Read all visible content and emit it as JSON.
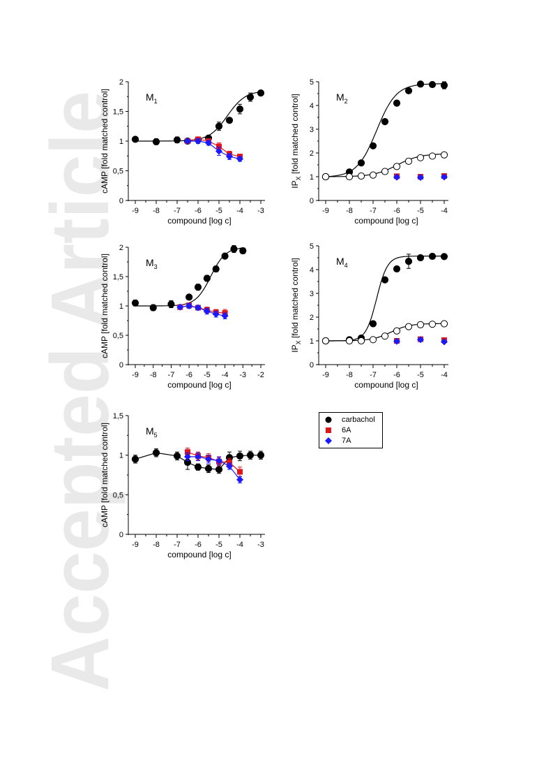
{
  "watermark": "Accepted Article",
  "legend": {
    "items": [
      {
        "label": "carbachol",
        "color": "#000000",
        "marker": "circle"
      },
      {
        "label": "6A",
        "color": "#e0161d",
        "marker": "square"
      },
      {
        "label": "7A",
        "color": "#1a1aff",
        "marker": "diamond"
      }
    ]
  },
  "colors": {
    "carbachol": "#000000",
    "6A": "#e0161d",
    "7A": "#1a1aff",
    "open": "#ffffff"
  },
  "chart_data": [
    {
      "type": "scatter",
      "panel_label": "M",
      "panel_sub": "1",
      "xlabel": "compound [log c]",
      "ylabel_main": "cAMP [fold matched control]",
      "ylabel_sub": "",
      "xlim": [
        -9,
        -3
      ],
      "ylim": [
        0,
        2
      ],
      "xticks": [
        -9,
        -8,
        -7,
        -6,
        -5,
        -4,
        -3
      ],
      "xtick_labels": [
        "-9",
        "-8",
        "-7",
        "-6",
        "-5",
        "-4",
        "-3"
      ],
      "yticks": [
        0,
        0.5,
        1,
        1.5,
        2
      ],
      "ytick_labels": [
        "0",
        "0,5",
        "1",
        "1,5",
        "2"
      ],
      "series": [
        {
          "name": "carbachol",
          "marker": "circle",
          "fill": "#000000",
          "line": true,
          "x": [
            -9,
            -8,
            -7,
            -6.5,
            -6,
            -5.5,
            -5,
            -4.5,
            -4,
            -3.5,
            -3
          ],
          "y": [
            1.03,
            0.99,
            1.02,
            1.0,
            1.02,
            1.05,
            1.25,
            1.35,
            1.54,
            1.74,
            1.81
          ],
          "err": [
            0.04,
            0.05,
            0.05,
            0.03,
            0.03,
            0.04,
            0.07,
            0.04,
            0.08,
            0.07,
            0.04
          ]
        },
        {
          "name": "6A",
          "marker": "square",
          "fill": "#e0161d",
          "line": true,
          "x": [
            -6.5,
            -6,
            -5.5,
            -5,
            -4.5,
            -4
          ],
          "y": [
            1.0,
            1.03,
            1.0,
            0.91,
            0.78,
            0.74
          ],
          "err": [
            0.03,
            0.04,
            0.04,
            0.06,
            0.05,
            0.03
          ]
        },
        {
          "name": "7A",
          "marker": "diamond",
          "fill": "#1a1aff",
          "line": true,
          "x": [
            -6.5,
            -6,
            -5.5,
            -5,
            -4.5,
            -4
          ],
          "y": [
            1.0,
            1.0,
            0.97,
            0.83,
            0.74,
            0.7
          ],
          "err": [
            0.03,
            0.04,
            0.04,
            0.07,
            0.05,
            0.04
          ]
        }
      ]
    },
    {
      "type": "scatter",
      "panel_label": "M",
      "panel_sub": "2",
      "xlabel": "compound [log c]",
      "ylabel_main": "IP",
      "ylabel_sub": "X",
      "ylabel_rest": " [fold matched control]",
      "xlim": [
        -9,
        -4
      ],
      "ylim": [
        0,
        5
      ],
      "xticks": [
        -9,
        -8,
        -7,
        -6,
        -5,
        -4
      ],
      "xtick_labels": [
        "-9",
        "-8",
        "-7",
        "-6",
        "-5",
        "-4"
      ],
      "yticks": [
        0,
        1,
        2,
        3,
        4,
        5
      ],
      "ytick_labels": [
        "0",
        "1",
        "2",
        "3",
        "4",
        "5"
      ],
      "series": [
        {
          "name": "carbachol",
          "marker": "circle",
          "fill": "#000000",
          "line": true,
          "x": [
            -9,
            -8,
            -7.5,
            -7,
            -6.5,
            -6,
            -5.5,
            -5,
            -4.5,
            -4
          ],
          "y": [
            1.0,
            1.2,
            1.58,
            2.3,
            3.32,
            4.1,
            4.62,
            4.9,
            4.88,
            4.85
          ],
          "err": [
            0.03,
            0.04,
            0.05,
            0.06,
            0.06,
            0.07,
            0.05,
            0.1,
            0.1,
            0.15
          ]
        },
        {
          "name": "",
          "marker": "circle",
          "fill": "#ffffff",
          "line": true,
          "x": [
            -9,
            -8,
            -7.5,
            -7,
            -6.5,
            -6,
            -5.5,
            -5,
            -4.5,
            -4
          ],
          "y": [
            1.0,
            1.0,
            1.03,
            1.07,
            1.22,
            1.43,
            1.65,
            1.8,
            1.87,
            1.92
          ],
          "err": [
            0.02,
            0.02,
            0.02,
            0.03,
            0.03,
            0.04,
            0.04,
            0.05,
            0.05,
            0.05
          ]
        },
        {
          "name": "6A",
          "marker": "square",
          "fill": "#e0161d",
          "line": false,
          "x": [
            -6,
            -5,
            -4
          ],
          "y": [
            1.02,
            1.0,
            1.03
          ],
          "err": [
            0.04,
            0.04,
            0.05
          ]
        },
        {
          "name": "7A",
          "marker": "diamond",
          "fill": "#1a1aff",
          "line": false,
          "x": [
            -6,
            -5,
            -4
          ],
          "y": [
            0.98,
            0.97,
            0.99
          ],
          "err": [
            0.04,
            0.04,
            0.05
          ]
        }
      ]
    },
    {
      "type": "scatter",
      "panel_label": "M",
      "panel_sub": "3",
      "xlabel": "compound [log c]",
      "ylabel_main": "cAMP [fold matched control]",
      "ylabel_sub": "",
      "xlim": [
        -9,
        -2
      ],
      "ylim": [
        0,
        2
      ],
      "xticks": [
        -9,
        -8,
        -7,
        -6,
        -5,
        -4,
        -3,
        -2
      ],
      "xtick_labels": [
        "-9",
        "-8",
        "-7",
        "-6",
        "-5",
        "-4",
        "-3",
        "-2"
      ],
      "yticks": [
        0,
        0.5,
        1,
        1.5,
        2
      ],
      "ytick_labels": [
        "0",
        "0,5",
        "1",
        "1,5",
        "2"
      ],
      "series": [
        {
          "name": "carbachol",
          "marker": "circle",
          "fill": "#000000",
          "line": true,
          "x": [
            -9,
            -8,
            -7,
            -6,
            -5.5,
            -5,
            -4.5,
            -4,
            -3.5,
            -3
          ],
          "y": [
            1.05,
            0.97,
            1.03,
            1.15,
            1.32,
            1.47,
            1.63,
            1.85,
            1.97,
            1.94
          ],
          "err": [
            0.05,
            0.05,
            0.06,
            0.04,
            0.05,
            0.05,
            0.05,
            0.04,
            0.06,
            0.05
          ]
        },
        {
          "name": "6A",
          "marker": "square",
          "fill": "#e0161d",
          "line": true,
          "x": [
            -6.5,
            -6,
            -5.5,
            -5,
            -4.5,
            -4
          ],
          "y": [
            0.98,
            1.01,
            0.97,
            0.93,
            0.89,
            0.88
          ],
          "err": [
            0.03,
            0.04,
            0.04,
            0.05,
            0.05,
            0.06
          ]
        },
        {
          "name": "7A",
          "marker": "diamond",
          "fill": "#1a1aff",
          "line": true,
          "x": [
            -6.5,
            -6,
            -5.5,
            -5,
            -4.5,
            -4
          ],
          "y": [
            0.98,
            1.0,
            0.97,
            0.91,
            0.86,
            0.83
          ],
          "err": [
            0.03,
            0.04,
            0.04,
            0.05,
            0.05,
            0.05
          ]
        }
      ]
    },
    {
      "type": "scatter",
      "panel_label": "M",
      "panel_sub": "4",
      "xlabel": "compound [log c]",
      "ylabel_main": "IP",
      "ylabel_sub": "X",
      "ylabel_rest": " [fold matched control]",
      "xlim": [
        -9,
        -4
      ],
      "ylim": [
        0,
        5
      ],
      "xticks": [
        -9,
        -8,
        -7,
        -6,
        -5,
        -4
      ],
      "xtick_labels": [
        "-9",
        "-8",
        "-7",
        "-6",
        "-5",
        "-4"
      ],
      "yticks": [
        0,
        1,
        2,
        3,
        4,
        5
      ],
      "ytick_labels": [
        "0",
        "1",
        "2",
        "3",
        "4",
        "5"
      ],
      "series": [
        {
          "name": "carbachol",
          "marker": "circle",
          "fill": "#000000",
          "line": true,
          "x": [
            -9,
            -8,
            -7.5,
            -7,
            -6.5,
            -6,
            -5.5,
            -5,
            -4.5,
            -4
          ],
          "y": [
            1.0,
            1.05,
            1.12,
            1.72,
            3.57,
            4.03,
            4.35,
            4.5,
            4.56,
            4.55
          ],
          "err": [
            0.03,
            0.04,
            0.05,
            0.06,
            0.06,
            0.08,
            0.3,
            0.06,
            0.05,
            0.05
          ]
        },
        {
          "name": "",
          "marker": "circle",
          "fill": "#ffffff",
          "line": true,
          "x": [
            -9,
            -8,
            -7.5,
            -7,
            -6.5,
            -6,
            -5.5,
            -5,
            -4.5,
            -4
          ],
          "y": [
            1.0,
            1.0,
            1.0,
            1.05,
            1.2,
            1.42,
            1.6,
            1.68,
            1.7,
            1.72
          ],
          "err": [
            0.02,
            0.02,
            0.02,
            0.03,
            0.03,
            0.04,
            0.04,
            0.04,
            0.05,
            0.05
          ]
        },
        {
          "name": "6A",
          "marker": "square",
          "fill": "#e0161d",
          "line": false,
          "x": [
            -6,
            -5,
            -4
          ],
          "y": [
            1.0,
            1.07,
            1.03
          ],
          "err": [
            0.04,
            0.04,
            0.04
          ]
        },
        {
          "name": "7A",
          "marker": "diamond",
          "fill": "#1a1aff",
          "line": false,
          "x": [
            -6,
            -5,
            -4
          ],
          "y": [
            0.98,
            1.05,
            0.96
          ],
          "err": [
            0.04,
            0.04,
            0.04
          ]
        }
      ]
    },
    {
      "type": "scatter",
      "panel_label": "M",
      "panel_sub": "5",
      "xlabel": "compound [log c]",
      "ylabel_main": "cAMP [fold matched control]",
      "ylabel_sub": "",
      "xlim": [
        -9,
        -3
      ],
      "ylim": [
        0,
        1.5
      ],
      "xticks": [
        -9,
        -8,
        -7,
        -6,
        -5,
        -4,
        -3
      ],
      "xtick_labels": [
        "-9",
        "-8",
        "-7",
        "-6",
        "-5",
        "-4",
        "-3"
      ],
      "yticks": [
        0,
        0.5,
        1,
        1.5
      ],
      "ytick_labels": [
        "0",
        "0,5",
        "1",
        "1,5"
      ],
      "series": [
        {
          "name": "carbachol",
          "marker": "circle",
          "fill": "#000000",
          "line": true,
          "x": [
            -9,
            -8,
            -7,
            -6.5,
            -6,
            -5.5,
            -5,
            -4.5,
            -4,
            -3.5,
            -3
          ],
          "y": [
            0.95,
            1.03,
            0.99,
            0.91,
            0.85,
            0.83,
            0.82,
            0.97,
            0.99,
            1.0,
            1.0
          ],
          "err": [
            0.05,
            0.05,
            0.05,
            0.09,
            0.04,
            0.05,
            0.05,
            0.07,
            0.06,
            0.05,
            0.05
          ]
        },
        {
          "name": "6A",
          "marker": "square",
          "fill": "#e0161d",
          "line": true,
          "x": [
            -6.5,
            -6,
            -5.5,
            -5,
            -4.5,
            -4
          ],
          "y": [
            1.04,
            0.99,
            0.97,
            0.92,
            0.91,
            0.79
          ],
          "err": [
            0.05,
            0.05,
            0.05,
            0.05,
            0.05,
            0.06
          ]
        },
        {
          "name": "7A",
          "marker": "diamond",
          "fill": "#1a1aff",
          "line": true,
          "x": [
            -6.5,
            -6,
            -5.5,
            -5,
            -4.5,
            -4
          ],
          "y": [
            0.98,
            0.98,
            0.95,
            0.93,
            0.86,
            0.69
          ],
          "err": [
            0.05,
            0.05,
            0.05,
            0.05,
            0.04,
            0.04
          ]
        }
      ]
    }
  ]
}
